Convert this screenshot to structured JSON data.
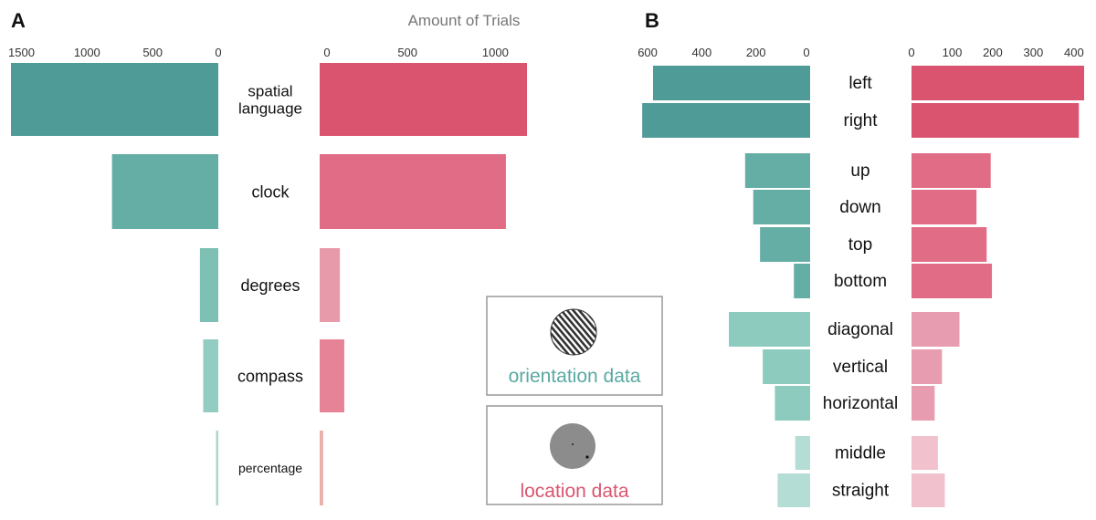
{
  "chart_data": [
    {
      "panel": "A",
      "type": "bar",
      "orientation": "horizontal-back-to-back",
      "title": "Amount of Trials",
      "categories": [
        "spatial\nlanguage",
        "clock",
        "degrees",
        "compass",
        "percentage"
      ],
      "series": [
        {
          "name": "orientation data",
          "side": "left",
          "values": [
            1580,
            810,
            140,
            115,
            15
          ]
        },
        {
          "name": "location data",
          "side": "right",
          "values": [
            1180,
            1060,
            115,
            140,
            20
          ]
        }
      ],
      "left_axis": {
        "ticks": [
          1500,
          1000,
          500,
          0
        ],
        "tick_labels": [
          "1500",
          "1000",
          "500",
          "0"
        ]
      },
      "right_axis": {
        "ticks": [
          0,
          500,
          1000
        ],
        "tick_labels": [
          "0",
          "500",
          "1000"
        ]
      }
    },
    {
      "panel": "B",
      "type": "bar",
      "orientation": "horizontal-back-to-back",
      "categories": [
        "left",
        "right",
        "up",
        "down",
        "top",
        "bottom",
        "diagonal",
        "vertical",
        "horizontal",
        "middle",
        "straight"
      ],
      "groups": [
        [
          "left",
          "right"
        ],
        [
          "up",
          "down",
          "top",
          "bottom"
        ],
        [
          "diagonal",
          "vertical",
          "horizontal"
        ],
        [
          "middle",
          "straight"
        ]
      ],
      "series": [
        {
          "name": "orientation data",
          "side": "left",
          "values": [
            580,
            620,
            240,
            210,
            185,
            60,
            300,
            175,
            130,
            55,
            120
          ]
        },
        {
          "name": "location data",
          "side": "right",
          "values": [
            425,
            412,
            195,
            160,
            185,
            198,
            118,
            75,
            57,
            65,
            82
          ]
        }
      ],
      "left_axis": {
        "ticks": [
          600,
          400,
          200,
          0
        ],
        "tick_labels": [
          "600",
          "400",
          "200",
          "0"
        ]
      },
      "right_axis": {
        "ticks": [
          0,
          100,
          200,
          300,
          400
        ],
        "tick_labels": [
          "0",
          "100",
          "200",
          "300",
          "400"
        ]
      }
    }
  ],
  "legend": {
    "orientation_label": "orientation data",
    "location_label": "location data",
    "orientation_color": "#5aa9a2",
    "location_color": "#d9566f"
  },
  "colors": {
    "A_left": [
      "#4f9b98",
      "#65aea5",
      "#7ec0b4",
      "#93cdc2",
      "#a9d8cd"
    ],
    "A_right": [
      "#da5470",
      "#e06c85",
      "#e69aaa",
      "#e68396",
      "#e8b0a6"
    ],
    "B_left": [
      "#4f9b98",
      "#4f9b98",
      "#65aea5",
      "#65aea5",
      "#65aea5",
      "#65aea5",
      "#8ccbbd",
      "#8ccbbd",
      "#8ccbbd",
      "#b3ddd5",
      "#b3ddd5"
    ],
    "B_right": [
      "#da5470",
      "#da5470",
      "#e06c85",
      "#e06c85",
      "#e06c85",
      "#e06c85",
      "#e89caf",
      "#e89caf",
      "#e89caf",
      "#f1c1cd",
      "#f1c1cd"
    ]
  }
}
